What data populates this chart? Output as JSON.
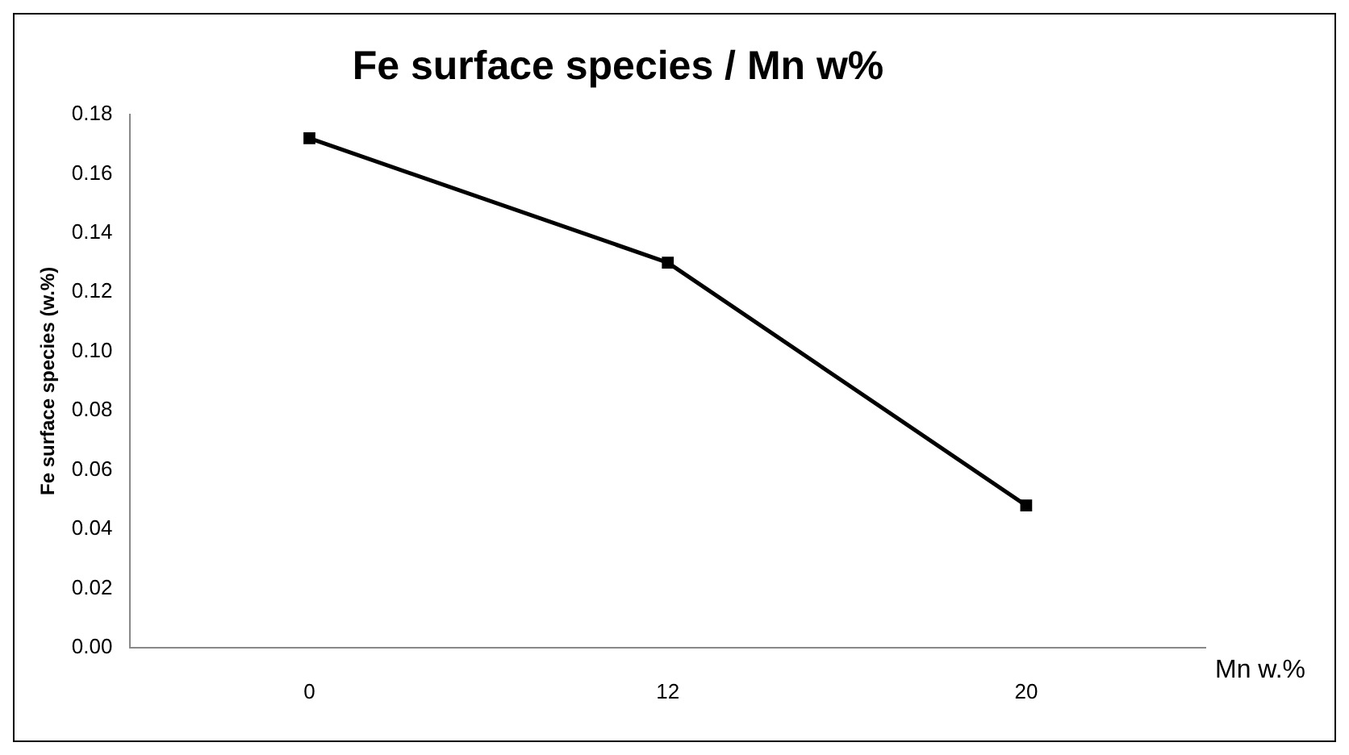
{
  "chart_data": {
    "type": "line",
    "title": "Fe surface species / Mn w%",
    "xlabel": "Mn w.%",
    "ylabel": "Fe surface species (w.%)",
    "categories": [
      "0",
      "12",
      "20"
    ],
    "series": [
      {
        "color": "#000000",
        "values": [
          0.172,
          0.13,
          0.048
        ]
      }
    ],
    "ylim": [
      0,
      0.18
    ],
    "yticks": [
      {
        "value": 0,
        "label": "0.00"
      },
      {
        "value": 0.02,
        "label": "0.02"
      },
      {
        "value": 0.04,
        "label": "0.04"
      },
      {
        "value": 0.06,
        "label": "0.06"
      },
      {
        "value": 0.08,
        "label": "0.08"
      },
      {
        "value": 0.1,
        "label": "0.10"
      },
      {
        "value": 0.12,
        "label": "0.12"
      },
      {
        "value": 0.14,
        "label": "0.14"
      },
      {
        "value": 0.16,
        "label": "0.16"
      },
      {
        "value": 0.18,
        "label": "0.18"
      }
    ],
    "grid": false,
    "legend": false,
    "marker": "square",
    "line_style": "solid"
  }
}
